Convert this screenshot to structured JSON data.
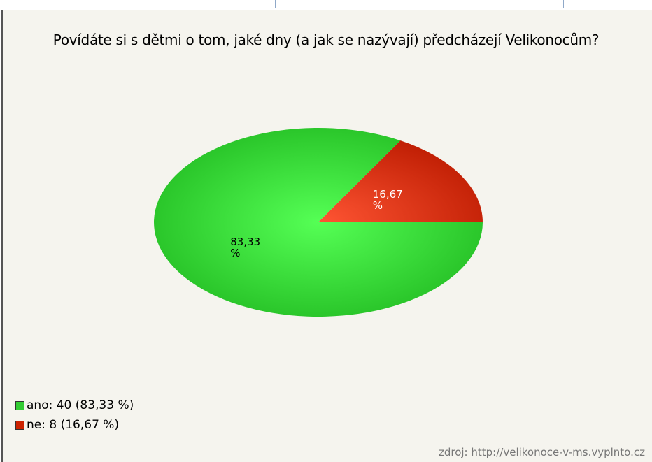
{
  "chart_data": {
    "type": "pie",
    "title": "Povídáte si s dětmi o tom, jaké dny (a jak se nazývají) předcházejí Velikonocům?",
    "categories": [
      "ano: 40 (83,33 %)",
      "ne: 8 (16,67 %)"
    ],
    "values": [
      83.33,
      16.67
    ],
    "value_labels": [
      "83,33 %",
      "16,67 %"
    ],
    "colors": [
      "#33cc33",
      "#cc2200"
    ],
    "legend": "bottom-left",
    "source": "zdroj: http://velikonoce-v-ms.vyplnto.cz"
  }
}
